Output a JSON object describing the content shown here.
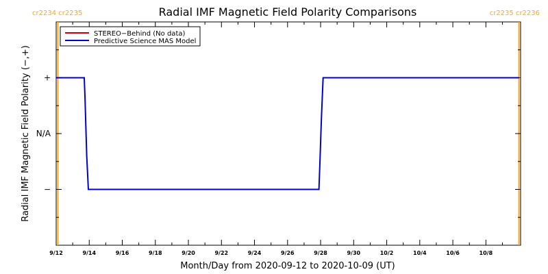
{
  "chart_data": {
    "type": "line",
    "title": "Radial IMF Magnetic Field Polarity Comparisons",
    "xlabel": "Month/Day from 2020-09-12 to 2020-10-09 (UT)",
    "ylabel": "Radial IMF Magnetic Field Polarity (−,+)",
    "x_start": "2020-09-12",
    "x_end": "2020-10-09",
    "xlim": [
      0,
      28.1
    ],
    "ylim": [
      -2,
      2
    ],
    "x_ticks": [
      {
        "day": 0,
        "label": "9/12"
      },
      {
        "day": 2,
        "label": "9/14"
      },
      {
        "day": 4,
        "label": "9/16"
      },
      {
        "day": 6,
        "label": "9/18"
      },
      {
        "day": 8,
        "label": "9/20"
      },
      {
        "day": 10,
        "label": "9/22"
      },
      {
        "day": 12,
        "label": "9/24"
      },
      {
        "day": 14,
        "label": "9/26"
      },
      {
        "day": 16,
        "label": "9/28"
      },
      {
        "day": 18,
        "label": "9/30"
      },
      {
        "day": 20,
        "label": "10/2"
      },
      {
        "day": 22,
        "label": "10/4"
      },
      {
        "day": 24,
        "label": "10/6"
      },
      {
        "day": 26,
        "label": "10/8"
      }
    ],
    "y_ticks": [
      {
        "value": 1,
        "label": "+"
      },
      {
        "value": 0,
        "label": "N/A"
      },
      {
        "value": -1,
        "label": "−"
      }
    ],
    "carrington_markers": [
      {
        "day": 0.1,
        "left": "cr2234",
        "right": "cr2235",
        "side": "left"
      },
      {
        "day": 28.0,
        "left": "cr2235",
        "right": "cr2236",
        "side": "right"
      }
    ],
    "series": [
      {
        "name": "STEREO−Behind (No data)",
        "color": "#cc0000",
        "points": []
      },
      {
        "name": "Predictive Science MAS Model",
        "color": "#0000cc",
        "points": [
          [
            0.0,
            1
          ],
          [
            1.7,
            1
          ],
          [
            1.75,
            0.6
          ],
          [
            1.85,
            -0.4
          ],
          [
            1.95,
            -1
          ],
          [
            15.9,
            -1
          ],
          [
            15.95,
            -0.6
          ],
          [
            16.05,
            0.3
          ],
          [
            16.15,
            1
          ],
          [
            28.0,
            1
          ]
        ]
      }
    ],
    "legend": "top-left",
    "grid": false,
    "marker_color": "#f5a623"
  }
}
